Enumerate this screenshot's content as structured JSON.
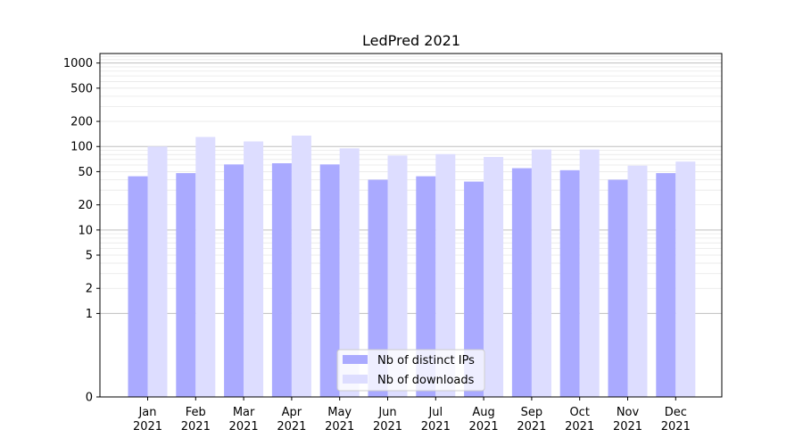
{
  "chart_data": {
    "type": "bar",
    "title": "LedPred 2021",
    "xlabel": "",
    "ylabel": "",
    "y_scale": "symlog",
    "ylim": [
      0,
      1300
    ],
    "y_ticks": [
      0,
      1,
      2,
      5,
      10,
      20,
      50,
      100,
      200,
      500,
      1000
    ],
    "y_major_grid": [
      0,
      1,
      10,
      100,
      1000
    ],
    "grid": "horizontal",
    "legend_position": "bottom-center",
    "categories": [
      [
        "Jan",
        "2021"
      ],
      [
        "Feb",
        "2021"
      ],
      [
        "Mar",
        "2021"
      ],
      [
        "Apr",
        "2021"
      ],
      [
        "May",
        "2021"
      ],
      [
        "Jun",
        "2021"
      ],
      [
        "Jul",
        "2021"
      ],
      [
        "Aug",
        "2021"
      ],
      [
        "Sep",
        "2021"
      ],
      [
        "Oct",
        "2021"
      ],
      [
        "Nov",
        "2021"
      ],
      [
        "Dec",
        "2021"
      ]
    ],
    "series": [
      {
        "name": "Nb of distinct IPs",
        "color": "#aaaaff",
        "values": [
          44,
          48,
          61,
          63,
          61,
          40,
          44,
          38,
          55,
          52,
          40,
          48
        ]
      },
      {
        "name": "Nb of downloads",
        "color": "#ddddff",
        "values": [
          100,
          130,
          115,
          135,
          95,
          78,
          81,
          75,
          92,
          92,
          59,
          66
        ]
      }
    ]
  }
}
